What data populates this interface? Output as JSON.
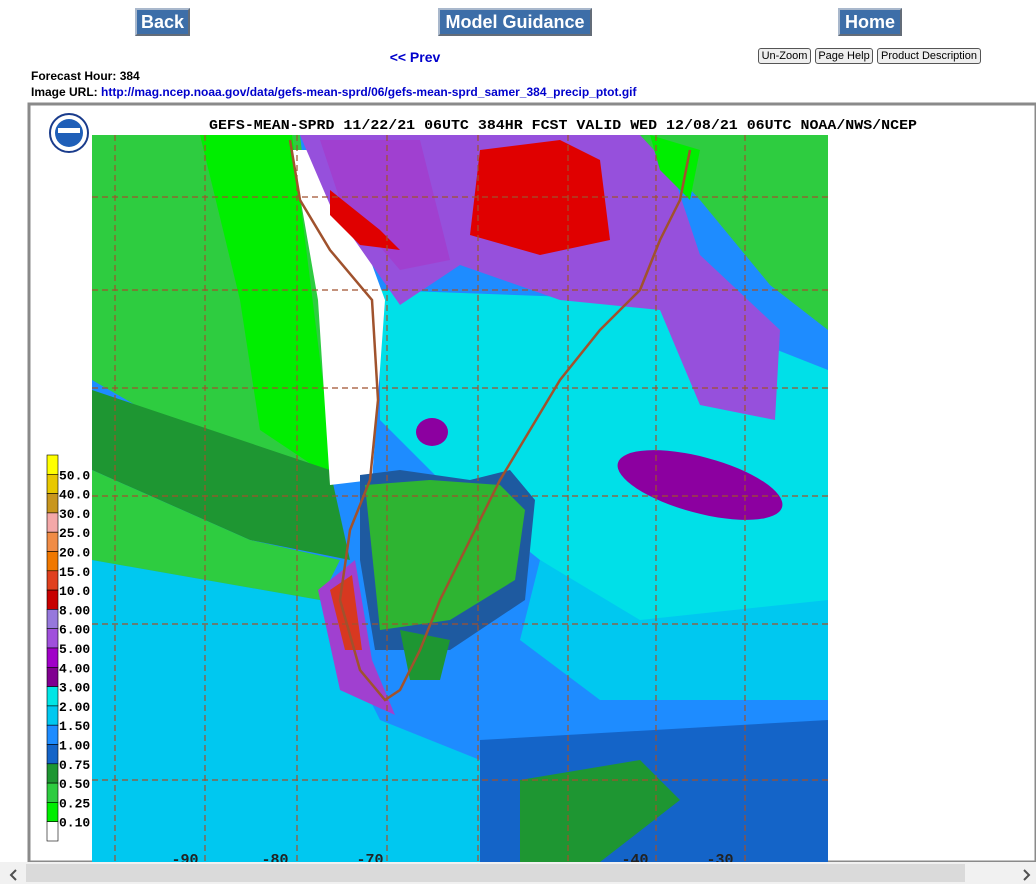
{
  "nav": {
    "back": "Back",
    "model_guidance": "Model Guidance",
    "home": "Home",
    "prev": "<< Prev"
  },
  "tools": [
    "Un-Zoom",
    "Page Help",
    "Product Description"
  ],
  "info": {
    "forecast_hour_label": "Forecast Hour:",
    "forecast_hour": "384",
    "image_url_label": "Image URL:",
    "image_url": "http://mag.ncep.noaa.gov/data/gefs-mean-sprd/06/gefs-mean-sprd_samer_384_precip_ptot.gif"
  },
  "map": {
    "title": "GEFS-MEAN-SPRD 11/22/21 06UTC 384HR FCST VALID WED 12/08/21 06UTC NOAA/NWS/NCEP",
    "legend": [
      "50.0",
      "40.0",
      "30.0",
      "25.0",
      "20.0",
      "15.0",
      "10.0",
      "8.00",
      "6.00",
      "5.00",
      "4.00",
      "3.00",
      "2.00",
      "1.50",
      "1.00",
      "0.75",
      "0.50",
      "0.25",
      "0.10"
    ],
    "lon_labels": [
      "-90",
      "-80",
      "-70",
      "-40",
      "-30"
    ]
  }
}
